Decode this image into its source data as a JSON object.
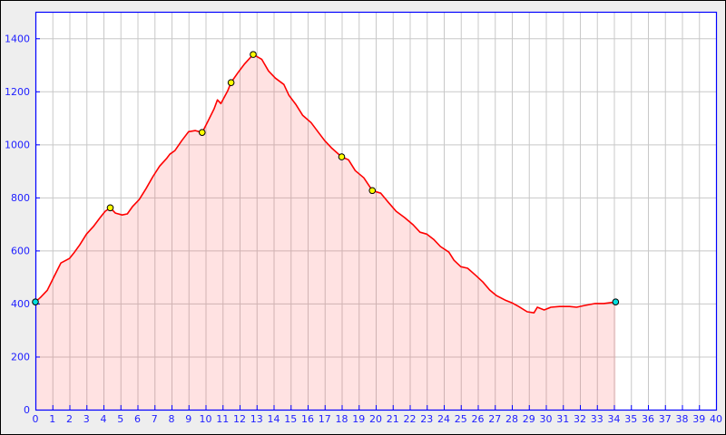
{
  "chart_data": {
    "type": "area",
    "title": "",
    "xlabel": "",
    "ylabel": "",
    "xlim": [
      0,
      40
    ],
    "ylim": [
      0,
      1500
    ],
    "x_ticks": [
      0,
      1,
      2,
      3,
      4,
      5,
      6,
      7,
      8,
      9,
      10,
      11,
      12,
      13,
      14,
      15,
      16,
      17,
      18,
      19,
      20,
      21,
      22,
      23,
      24,
      25,
      26,
      27,
      28,
      29,
      30,
      31,
      32,
      33,
      34,
      35,
      36,
      37,
      38,
      39,
      40
    ],
    "y_ticks": [
      0,
      200,
      400,
      600,
      800,
      1000,
      1200,
      1400
    ],
    "grid": true,
    "colors": {
      "line": "#ff0000",
      "fill": "#ffe0e0",
      "axis": "#0000ff",
      "tick_text": "#2020ff",
      "grid": "#c8c8c8",
      "waypoint": "#ffff00",
      "endpoint": "#00e0e0"
    },
    "series": [
      {
        "x": [
          0,
          0.3,
          0.7,
          1.1,
          1.5,
          2.0,
          2.3,
          2.6,
          3.0,
          3.4,
          3.8,
          4.1,
          4.4,
          4.7,
          5.1,
          5.4,
          5.7,
          6.1,
          6.5,
          6.9,
          7.3,
          7.7,
          7.9,
          8.2,
          8.6,
          9.0,
          9.4,
          9.8,
          10.1,
          10.5,
          10.7,
          10.9,
          11.3,
          11.5,
          11.9,
          12.3,
          12.8,
          13.3,
          13.7,
          14.1,
          14.6,
          14.9,
          15.3,
          15.7,
          16.2,
          16.6,
          17.0,
          17.4,
          18.0,
          18.4,
          18.8,
          19.3,
          19.8,
          20.3,
          20.7,
          21.2,
          21.7,
          22.2,
          22.6,
          23.0,
          23.4,
          23.8,
          24.3,
          24.6,
          25.0,
          25.4,
          25.9,
          26.3,
          26.7,
          27.1,
          27.6,
          28.0,
          28.4,
          28.9,
          29.3,
          29.5,
          29.9,
          30.3,
          30.8,
          31.4,
          31.8,
          32.3,
          32.9,
          33.4,
          34.1
        ],
        "y": [
          406,
          423,
          450,
          502,
          553,
          570,
          594,
          621,
          662,
          690,
          724,
          748,
          761,
          741,
          734,
          738,
          765,
          792,
          833,
          878,
          918,
          946,
          963,
          977,
          1014,
          1048,
          1052,
          1045,
          1082,
          1134,
          1168,
          1154,
          1202,
          1233,
          1270,
          1304,
          1339,
          1321,
          1277,
          1250,
          1226,
          1185,
          1151,
          1110,
          1082,
          1048,
          1014,
          987,
          953,
          942,
          901,
          874,
          826,
          816,
          785,
          748,
          724,
          697,
          669,
          662,
          642,
          615,
          594,
          563,
          539,
          533,
          505,
          481,
          451,
          430,
          413,
          403,
          389,
          369,
          365,
          386,
          376,
          386,
          389,
          389,
          386,
          393,
          400,
          400,
          406
        ]
      }
    ],
    "waypoints": [
      {
        "x": 0,
        "y": 406,
        "kind": "endpoint"
      },
      {
        "x": 4.4,
        "y": 761,
        "kind": "waypoint"
      },
      {
        "x": 9.8,
        "y": 1045,
        "kind": "waypoint"
      },
      {
        "x": 11.5,
        "y": 1233,
        "kind": "waypoint"
      },
      {
        "x": 12.8,
        "y": 1339,
        "kind": "waypoint"
      },
      {
        "x": 18.0,
        "y": 953,
        "kind": "waypoint"
      },
      {
        "x": 19.8,
        "y": 826,
        "kind": "waypoint"
      },
      {
        "x": 34.1,
        "y": 406,
        "kind": "endpoint"
      }
    ]
  }
}
